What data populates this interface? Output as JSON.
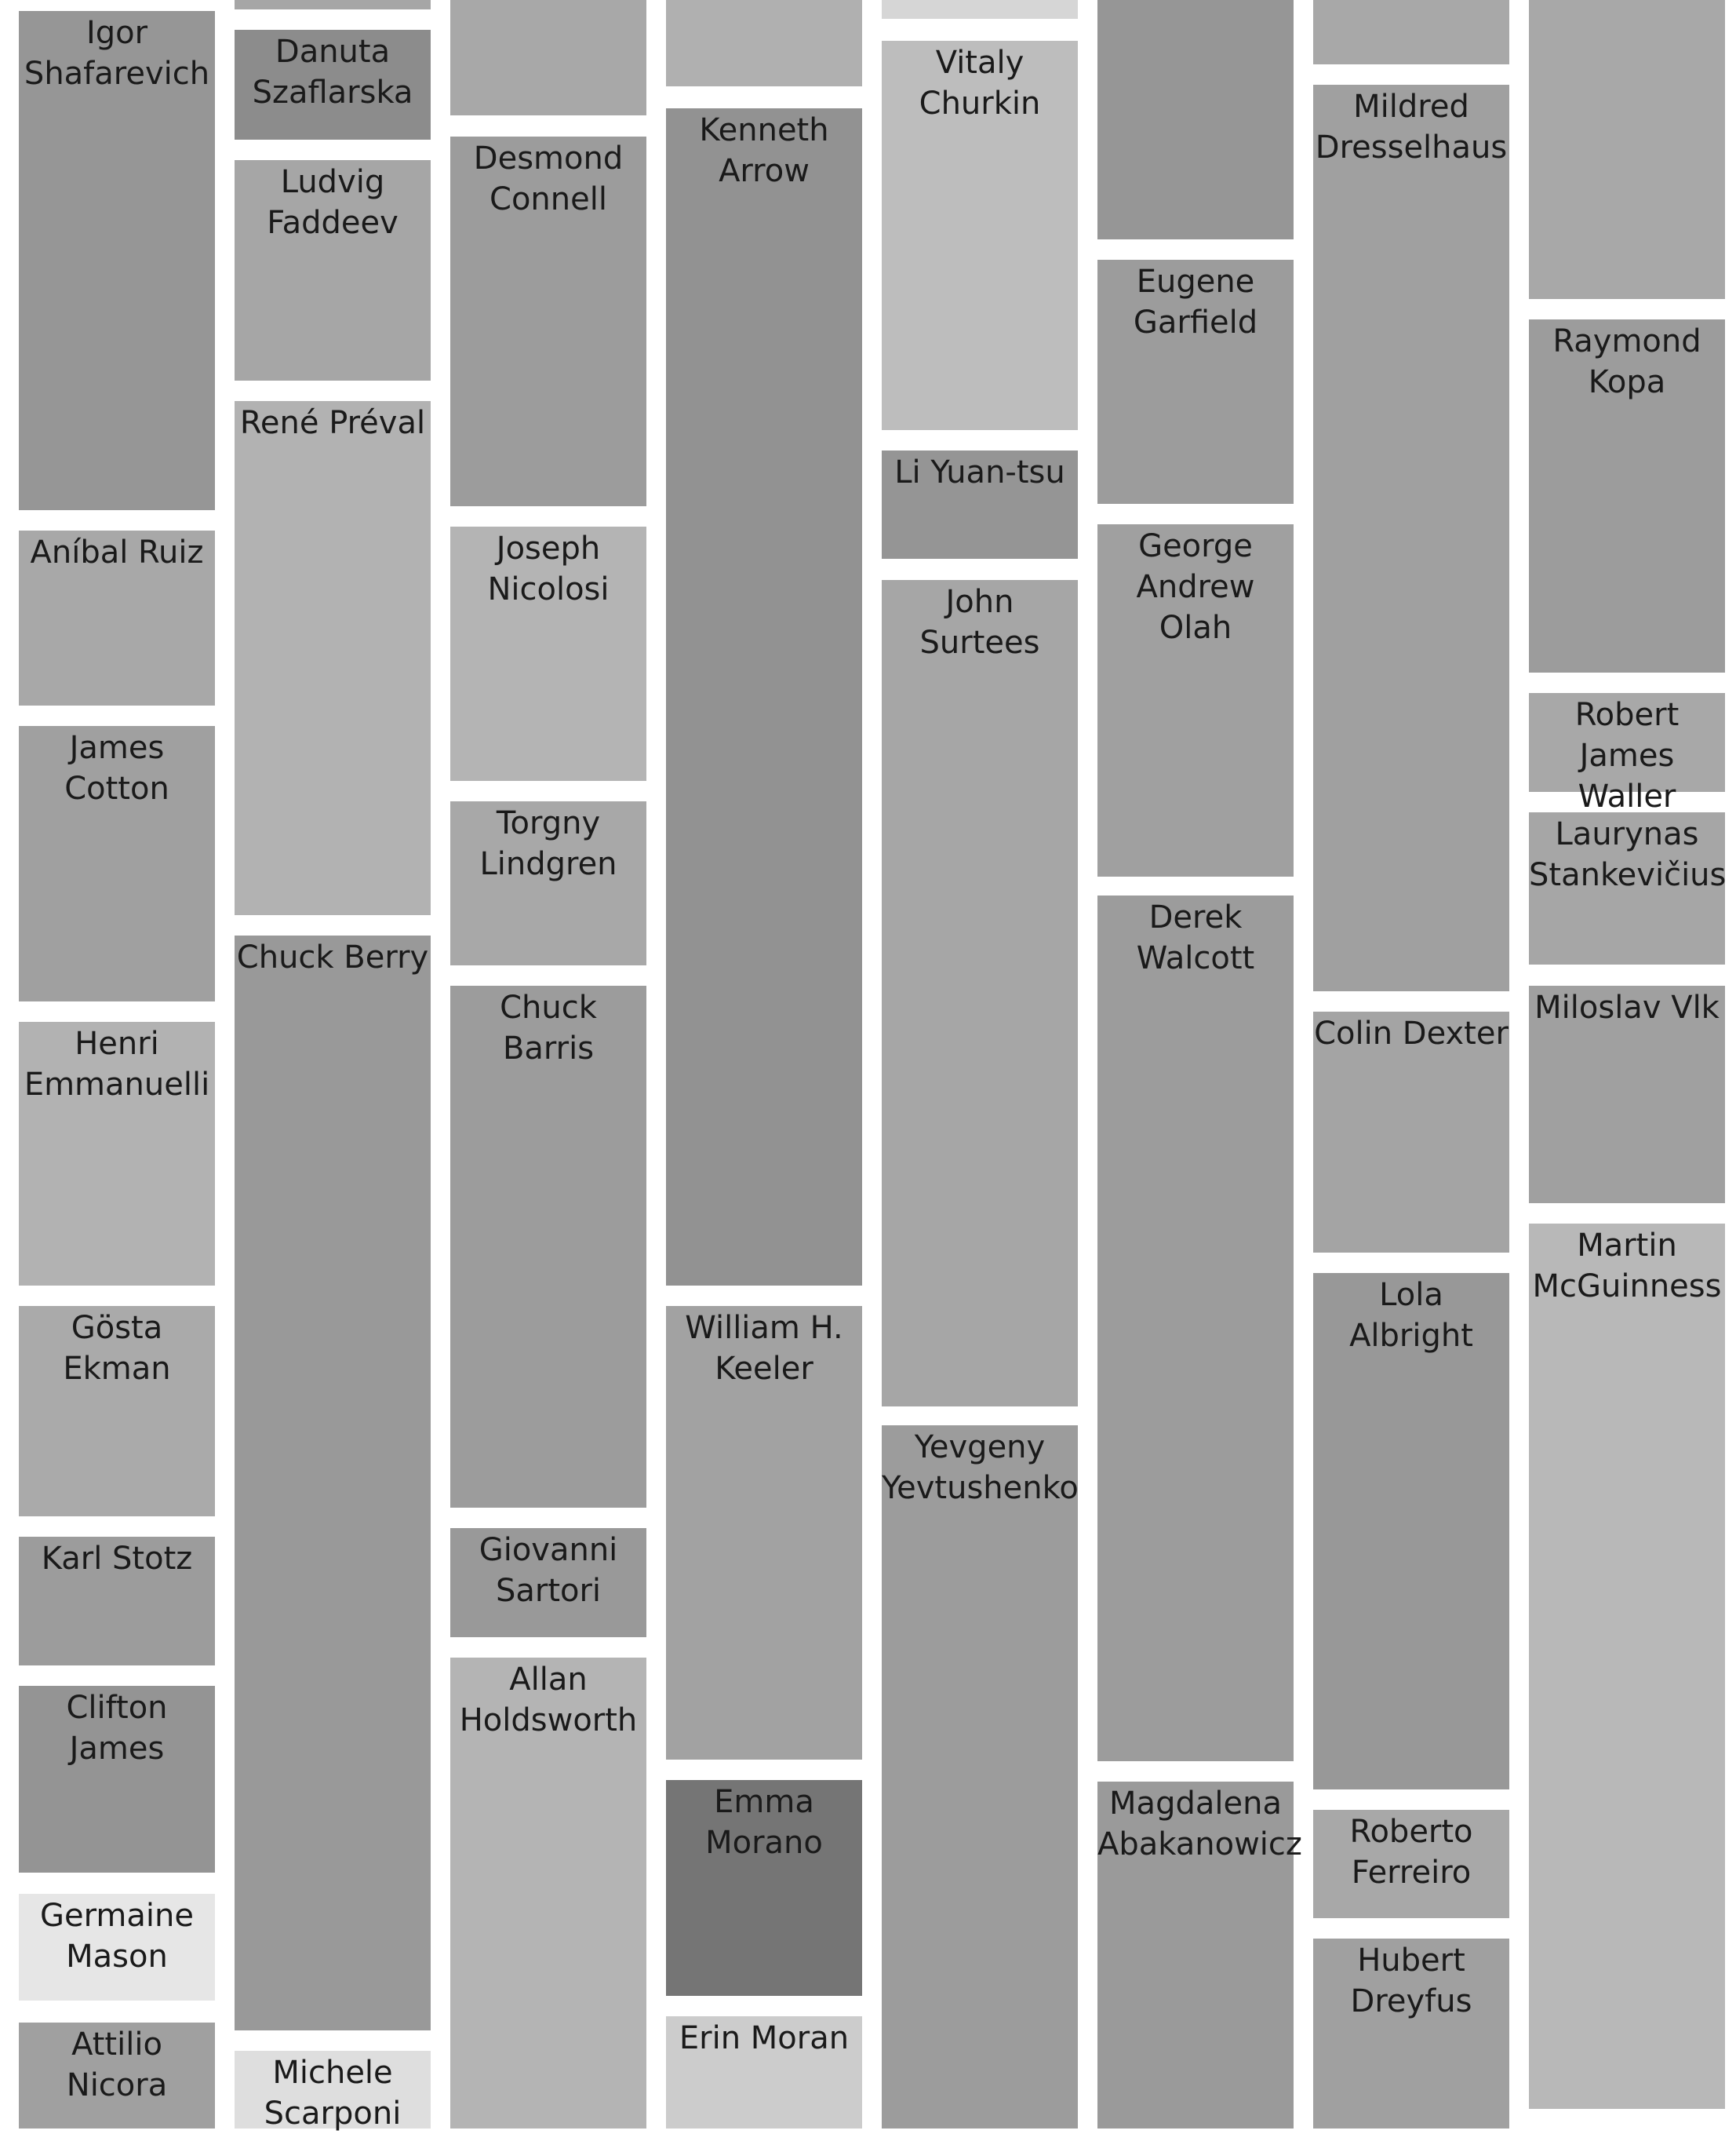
{
  "columns": [
    {
      "tiles": [
        {
          "label": "Igor Shafarevich",
          "color": "#969696"
        },
        {
          "label": "Aníbal Ruiz",
          "color": "#a8a8a8"
        },
        {
          "label": "James Cotton",
          "color": "#a0a0a0"
        },
        {
          "label": "Henri Emmanuelli",
          "color": "#b2b2b2"
        },
        {
          "label": "Gösta Ekman",
          "color": "#aaaaaa"
        },
        {
          "label": "Karl Stotz",
          "color": "#9c9c9c"
        },
        {
          "label": "Clifton James",
          "color": "#949494"
        },
        {
          "label": "Germaine Mason",
          "color": "#e6e6e6"
        },
        {
          "label": "Attilio Nicora",
          "color": "#a0a0a0"
        }
      ]
    },
    {
      "tiles": [
        {
          "label": "",
          "color": "#a6a6a6"
        },
        {
          "label": "Danuta Szaflarska",
          "color": "#8c8c8c"
        },
        {
          "label": "Ludvig Faddeev",
          "color": "#a6a6a6"
        },
        {
          "label": "René Préval",
          "color": "#b2b2b2"
        },
        {
          "label": "Chuck Berry",
          "color": "#999999"
        },
        {
          "label": "Michele Scarponi",
          "color": "#dedede"
        }
      ]
    },
    {
      "tiles": [
        {
          "label": "",
          "color": "#a8a8a8"
        },
        {
          "label": "Desmond Connell",
          "color": "#9c9c9c"
        },
        {
          "label": "Joseph Nicolosi",
          "color": "#b4b4b4"
        },
        {
          "label": "Torgny Lindgren",
          "color": "#a8a8a8"
        },
        {
          "label": "Chuck Barris",
          "color": "#9c9c9c"
        },
        {
          "label": "Giovanni Sartori",
          "color": "#999999"
        },
        {
          "label": "Allan Holdsworth",
          "color": "#b4b4b4"
        }
      ]
    },
    {
      "tiles": [
        {
          "label": "",
          "color": "#b0b0b0"
        },
        {
          "label": "Kenneth Arrow",
          "color": "#929292"
        },
        {
          "label": "William H. Keeler",
          "color": "#a2a2a2"
        },
        {
          "label": "Emma Morano",
          "color": "#757575"
        },
        {
          "label": "Erin Moran",
          "color": "#cccccc"
        }
      ]
    },
    {
      "tiles": [
        {
          "label": "",
          "color": "#d6d6d6"
        },
        {
          "label": "Vitaly Churkin",
          "color": "#bdbdbd"
        },
        {
          "label": "Li Yuan-tsu",
          "color": "#959595"
        },
        {
          "label": "John Surtees",
          "color": "#a6a6a6"
        },
        {
          "label": "Yevgeny Yevtushenko",
          "color": "#9c9c9c"
        }
      ]
    },
    {
      "tiles": [
        {
          "label": "",
          "color": "#969696"
        },
        {
          "label": "Eugene Garfield",
          "color": "#9c9c9c"
        },
        {
          "label": "George Andrew Olah",
          "color": "#a0a0a0"
        },
        {
          "label": "Derek Walcott",
          "color": "#9c9c9c"
        },
        {
          "label": "Magdalena Abakanowicz",
          "color": "#9a9a9a"
        }
      ]
    },
    {
      "tiles": [
        {
          "label": "",
          "color": "#a8a8a8"
        },
        {
          "label": "Mildred Dresselhaus",
          "color": "#a0a0a0"
        },
        {
          "label": "Colin Dexter",
          "color": "#a4a4a4"
        },
        {
          "label": "Lola Albright",
          "color": "#989898"
        },
        {
          "label": "Roberto Ferreiro",
          "color": "#a8a8a8"
        },
        {
          "label": "Hubert Dreyfus",
          "color": "#a0a0a0"
        }
      ]
    },
    {
      "tiles": [
        {
          "label": "",
          "color": "#a8a8a8"
        },
        {
          "label": "Raymond Kopa",
          "color": "#9c9c9c"
        },
        {
          "label": "Robert James Waller",
          "color": "#a8a8a8"
        },
        {
          "label": "Laurynas Stankevičius",
          "color": "#a6a6a6"
        },
        {
          "label": "Miloslav Vlk",
          "color": "#a0a0a0"
        },
        {
          "label": "Martin McGuinness",
          "color": "#b8b8b8"
        },
        {
          "label": "",
          "color": "#c8c8c8"
        }
      ]
    }
  ]
}
